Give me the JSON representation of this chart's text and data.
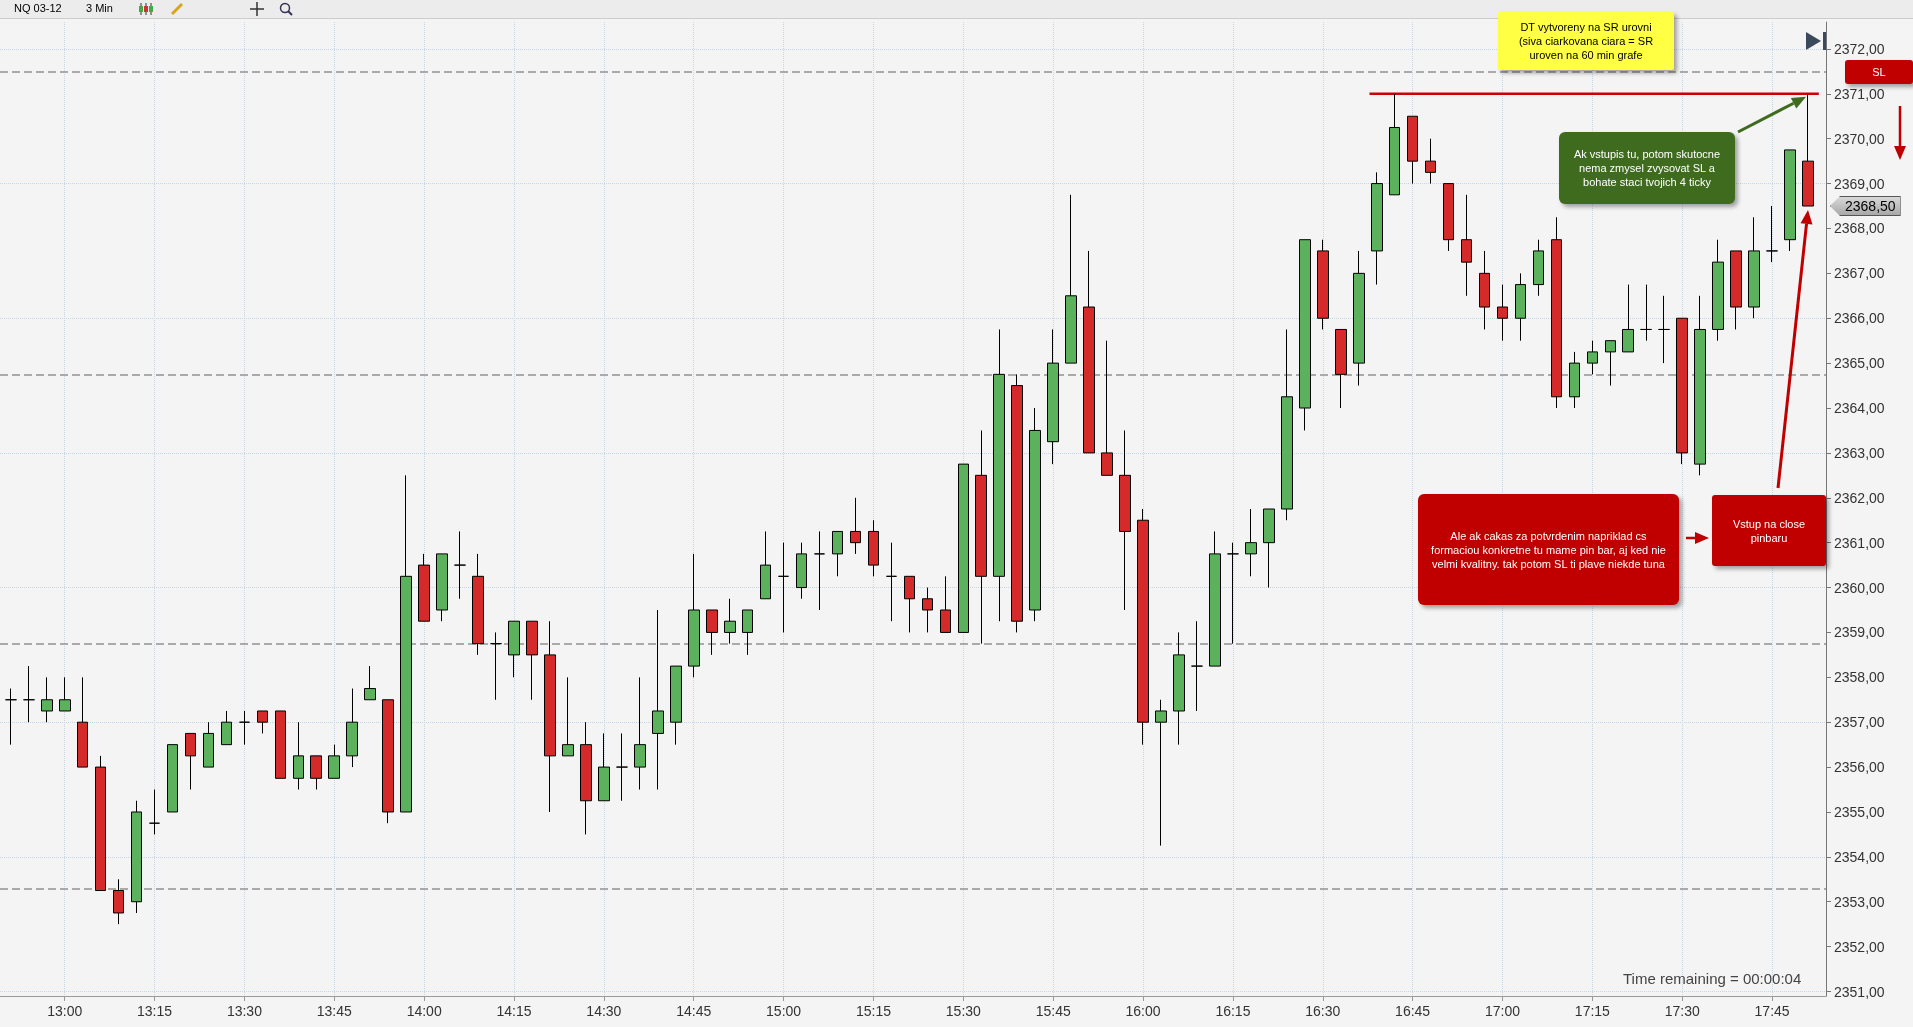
{
  "chart_data": {
    "type": "candlestick",
    "x": [
      12.85,
      12.9,
      12.95,
      13,
      13.05,
      13.1,
      13.15,
      13.2,
      13.25,
      13.3,
      13.35,
      13.4,
      13.45,
      13.5,
      13.55,
      13.6,
      13.65,
      13.7,
      13.75,
      13.8,
      13.85,
      13.9,
      13.95,
      14,
      14.05,
      14.1,
      14.15,
      14.2,
      14.25,
      14.3,
      14.35,
      14.4,
      14.45,
      14.5,
      14.55,
      14.6,
      14.65,
      14.7,
      14.75,
      14.8,
      14.85,
      14.9,
      14.95,
      15,
      15.05,
      15.1,
      15.15,
      15.2,
      15.25,
      15.3,
      15.35,
      15.4,
      15.45,
      15.5,
      15.55,
      15.6,
      15.65,
      15.7,
      15.75,
      15.8,
      15.85,
      15.9,
      15.95,
      16,
      16.05,
      16.1,
      16.15,
      16.2,
      16.25,
      16.3,
      16.35,
      16.4,
      16.45,
      16.5,
      16.55,
      16.6,
      16.65,
      16.7,
      16.75,
      16.8,
      16.85,
      16.9,
      16.95,
      17,
      17.05,
      17.1,
      17.15,
      17.2,
      17.25,
      17.3,
      17.35,
      17.4,
      17.45,
      17.5,
      17.55,
      17.6,
      17.65,
      17.7,
      17.75,
      17.8,
      17.85
    ],
    "ohlc": [
      [
        2357.5,
        2357.75,
        2356.5,
        2357.5
      ],
      [
        2357.5,
        2358.25,
        2357,
        2357.5
      ],
      [
        2357.25,
        2358,
        2357,
        2357.5
      ],
      [
        2357.25,
        2358,
        2357.25,
        2357.5
      ],
      [
        2357,
        2358,
        2356,
        2356
      ],
      [
        2356,
        2356.25,
        2353.25,
        2353.25
      ],
      [
        2353.25,
        2353.5,
        2352.5,
        2352.75
      ],
      [
        2353,
        2355.25,
        2352.75,
        2355
      ],
      [
        2354.75,
        2355.5,
        2354.5,
        2354.75
      ],
      [
        2355,
        2356.5,
        2355,
        2356.5
      ],
      [
        2356.75,
        2356.75,
        2355.5,
        2356.25
      ],
      [
        2356,
        2357,
        2356,
        2356.75
      ],
      [
        2356.5,
        2357.25,
        2356.5,
        2357
      ],
      [
        2357,
        2357.25,
        2356.5,
        2357
      ],
      [
        2357.25,
        2357.25,
        2356.75,
        2357
      ],
      [
        2357.25,
        2357.25,
        2355.75,
        2355.75
      ],
      [
        2355.75,
        2357,
        2355.5,
        2356.25
      ],
      [
        2356.25,
        2356.25,
        2355.5,
        2355.75
      ],
      [
        2355.75,
        2356.5,
        2355.75,
        2356.25
      ],
      [
        2356.25,
        2357.75,
        2356,
        2357
      ],
      [
        2357.5,
        2358.25,
        2357.5,
        2357.75
      ],
      [
        2357.5,
        2357.5,
        2354.75,
        2355
      ],
      [
        2355,
        2362.5,
        2355,
        2360.25
      ],
      [
        2360.5,
        2360.75,
        2359.25,
        2359.25
      ],
      [
        2359.5,
        2360.75,
        2359.25,
        2360.75
      ],
      [
        2360.5,
        2361.25,
        2359.75,
        2360.5
      ],
      [
        2360.25,
        2360.75,
        2358.5,
        2358.75
      ],
      [
        2358.75,
        2359,
        2357.5,
        2358.75
      ],
      [
        2358.5,
        2359.25,
        2358,
        2359.25
      ],
      [
        2359.25,
        2359.25,
        2357.5,
        2358.5
      ],
      [
        2358.5,
        2359.25,
        2355,
        2356.25
      ],
      [
        2356.25,
        2358,
        2356.25,
        2356.5
      ],
      [
        2356.5,
        2357,
        2354.5,
        2355.25
      ],
      [
        2355.25,
        2356.75,
        2355.25,
        2356
      ],
      [
        2356,
        2356.75,
        2355.25,
        2356
      ],
      [
        2356,
        2358,
        2355.5,
        2356.5
      ],
      [
        2356.75,
        2359.5,
        2355.5,
        2357.25
      ],
      [
        2357,
        2358.25,
        2356.5,
        2358.25
      ],
      [
        2358.25,
        2360.75,
        2358,
        2359.5
      ],
      [
        2359.5,
        2359.5,
        2358.5,
        2359
      ],
      [
        2359,
        2359.75,
        2358.75,
        2359.25
      ],
      [
        2359,
        2359.5,
        2358.5,
        2359.5
      ],
      [
        2359.75,
        2361.25,
        2359.75,
        2360.5
      ],
      [
        2360.25,
        2361,
        2359,
        2360.25
      ],
      [
        2360,
        2361,
        2359.75,
        2360.75
      ],
      [
        2360.75,
        2361.25,
        2359.5,
        2360.75
      ],
      [
        2360.75,
        2361.25,
        2360.25,
        2361.25
      ],
      [
        2361.25,
        2362,
        2360.75,
        2361
      ],
      [
        2361.25,
        2361.5,
        2360.25,
        2360.5
      ],
      [
        2360.25,
        2361,
        2359.25,
        2360.25
      ],
      [
        2360.25,
        2360.25,
        2359,
        2359.75
      ],
      [
        2359.75,
        2360,
        2359,
        2359.5
      ],
      [
        2359.5,
        2360.25,
        2359,
        2359
      ],
      [
        2359,
        2362.75,
        2359,
        2362.75
      ],
      [
        2362.5,
        2363.5,
        2358.75,
        2360.25
      ],
      [
        2360.25,
        2365.75,
        2359.25,
        2364.75
      ],
      [
        2364.5,
        2364.75,
        2359,
        2359.25
      ],
      [
        2359.5,
        2364,
        2359.25,
        2363.5
      ],
      [
        2363.25,
        2365.75,
        2362.75,
        2365
      ],
      [
        2365,
        2368.75,
        2365,
        2366.5
      ],
      [
        2366.25,
        2367.5,
        2363,
        2363
      ],
      [
        2363,
        2365.5,
        2362.5,
        2362.5
      ],
      [
        2362.5,
        2363.5,
        2359.5,
        2361.25
      ],
      [
        2361.5,
        2361.75,
        2356.5,
        2357
      ],
      [
        2357,
        2357.5,
        2354.25,
        2357.25
      ],
      [
        2357.25,
        2359,
        2356.5,
        2358.5
      ],
      [
        2358.25,
        2359.25,
        2357.25,
        2358.25
      ],
      [
        2358.25,
        2361.25,
        2358.25,
        2360.75
      ],
      [
        2360.75,
        2361,
        2358.75,
        2360.75
      ],
      [
        2360.75,
        2361.75,
        2360.25,
        2361
      ],
      [
        2361,
        2361.75,
        2360,
        2361.75
      ],
      [
        2361.75,
        2365.75,
        2361.5,
        2364.25
      ],
      [
        2364,
        2367.75,
        2363.5,
        2367.75
      ],
      [
        2367.5,
        2367.75,
        2365.75,
        2366
      ],
      [
        2365.75,
        2365.75,
        2364,
        2364.75
      ],
      [
        2365,
        2367.5,
        2364.5,
        2367
      ],
      [
        2367.5,
        2369.25,
        2366.75,
        2369
      ],
      [
        2368.75,
        2371,
        2368.75,
        2370.25
      ],
      [
        2370.5,
        2370.5,
        2369,
        2369.5
      ],
      [
        2369.5,
        2370,
        2369,
        2369.25
      ],
      [
        2369,
        2369,
        2367.5,
        2367.75
      ],
      [
        2367.75,
        2368.75,
        2366.5,
        2367.25
      ],
      [
        2367,
        2367.5,
        2365.75,
        2366.25
      ],
      [
        2366.25,
        2366.75,
        2365.5,
        2366
      ],
      [
        2366,
        2367,
        2365.5,
        2366.75
      ],
      [
        2366.75,
        2367.75,
        2366.5,
        2367.5
      ],
      [
        2367.75,
        2368.25,
        2364,
        2364.25
      ],
      [
        2364.25,
        2365.25,
        2364,
        2365
      ],
      [
        2365,
        2365.5,
        2364.75,
        2365.25
      ],
      [
        2365.25,
        2365.5,
        2364.5,
        2365.5
      ],
      [
        2365.25,
        2366.75,
        2365.25,
        2365.75
      ],
      [
        2365.75,
        2366.75,
        2365.5,
        2365.75
      ],
      [
        2365.75,
        2366.5,
        2365,
        2365.75
      ],
      [
        2366,
        2366,
        2362.75,
        2363
      ],
      [
        2362.75,
        2366.5,
        2362.5,
        2365.75
      ],
      [
        2365.75,
        2367.75,
        2365.5,
        2367.25
      ],
      [
        2367.5,
        2367.5,
        2365.75,
        2366.25
      ],
      [
        2366.25,
        2368.25,
        2366,
        2367.5
      ],
      [
        2367.5,
        2368.5,
        2367.25,
        2367.5
      ],
      [
        2367.75,
        2369.75,
        2367.5,
        2369.75
      ],
      [
        2369.5,
        2371,
        2368.5,
        2368.5
      ]
    ],
    "colors": [
      "#000000",
      "#000000",
      "#5cb25c",
      "#5cb25c",
      "#d42a2a",
      "#d42a2a",
      "#d42a2a",
      "#5cb25c",
      "#000000",
      "#5cb25c",
      "#d42a2a",
      "#5cb25c",
      "#5cb25c",
      "#000000",
      "#d42a2a",
      "#d42a2a",
      "#5cb25c",
      "#d42a2a",
      "#5cb25c",
      "#5cb25c",
      "#5cb25c",
      "#d42a2a",
      "#5cb25c",
      "#d42a2a",
      "#5cb25c",
      "#000000",
      "#d42a2a",
      "#000000",
      "#5cb25c",
      "#d42a2a",
      "#d42a2a",
      "#5cb25c",
      "#d42a2a",
      "#5cb25c",
      "#000000",
      "#5cb25c",
      "#5cb25c",
      "#5cb25c",
      "#5cb25c",
      "#d42a2a",
      "#5cb25c",
      "#5cb25c",
      "#5cb25c",
      "#000000",
      "#5cb25c",
      "#000000",
      "#5cb25c",
      "#d42a2a",
      "#d42a2a",
      "#000000",
      "#d42a2a",
      "#d42a2a",
      "#d42a2a",
      "#5cb25c",
      "#d42a2a",
      "#5cb25c",
      "#d42a2a",
      "#5cb25c",
      "#5cb25c",
      "#5cb25c",
      "#d42a2a",
      "#d42a2a",
      "#d42a2a",
      "#d42a2a",
      "#5cb25c",
      "#5cb25c",
      "#000000",
      "#5cb25c",
      "#000000",
      "#5cb25c",
      "#5cb25c",
      "#5cb25c",
      "#5cb25c",
      "#d42a2a",
      "#d42a2a",
      "#5cb25c",
      "#5cb25c",
      "#5cb25c",
      "#d42a2a",
      "#d42a2a",
      "#d42a2a",
      "#d42a2a",
      "#d42a2a",
      "#d42a2a",
      "#5cb25c",
      "#5cb25c",
      "#d42a2a",
      "#5cb25c",
      "#5cb25c",
      "#5cb25c",
      "#5cb25c",
      "#000000",
      "#000000",
      "#d42a2a",
      "#5cb25c",
      "#5cb25c",
      "#d42a2a",
      "#5cb25c",
      "#000000",
      "#5cb25c",
      "#d42a2a"
    ],
    "series": [
      {
        "type": "line",
        "color": "#cc0000",
        "x": [
          16.63,
          17.88
        ],
        "values": [
          2371,
          2371
        ]
      }
    ],
    "xlim": [
      12.82,
      17.9
    ],
    "ylim": [
      2350.9,
      2372.6
    ],
    "xticks": [
      {
        "value": 13,
        "label": "13:00"
      },
      {
        "value": 13.25,
        "label": "13:15"
      },
      {
        "value": 13.5,
        "label": "13:30"
      },
      {
        "value": 13.75,
        "label": "13:45"
      },
      {
        "value": 14,
        "label": "14:00"
      },
      {
        "value": 14.25,
        "label": "14:15"
      },
      {
        "value": 14.5,
        "label": "14:30"
      },
      {
        "value": 14.75,
        "label": "14:45"
      },
      {
        "value": 15,
        "label": "15:00"
      },
      {
        "value": 15.25,
        "label": "15:15"
      },
      {
        "value": 15.5,
        "label": "15:30"
      },
      {
        "value": 15.75,
        "label": "15:45"
      },
      {
        "value": 16,
        "label": "16:00"
      },
      {
        "value": 16.25,
        "label": "16:15"
      },
      {
        "value": 16.5,
        "label": "16:30"
      },
      {
        "value": 16.75,
        "label": "16:45"
      },
      {
        "value": 17,
        "label": "17:00"
      },
      {
        "value": 17.25,
        "label": "17:15"
      },
      {
        "value": 17.5,
        "label": "17:30"
      },
      {
        "value": 17.75,
        "label": "17:45"
      }
    ],
    "yticks": [
      {
        "value": 2351,
        "label": "2351,00"
      },
      {
        "value": 2352,
        "label": "2352,00"
      },
      {
        "value": 2353,
        "label": "2353,00"
      },
      {
        "value": 2354,
        "label": "2354,00"
      },
      {
        "value": 2355,
        "label": "2355,00"
      },
      {
        "value": 2356,
        "label": "2356,00"
      },
      {
        "value": 2357,
        "label": "2357,00"
      },
      {
        "value": 2358,
        "label": "2358,00"
      },
      {
        "value": 2359,
        "label": "2359,00"
      },
      {
        "value": 2360,
        "label": "2360,00"
      },
      {
        "value": 2361,
        "label": "2361,00"
      },
      {
        "value": 2362,
        "label": "2362,00"
      },
      {
        "value": 2363,
        "label": "2363,00"
      },
      {
        "value": 2364,
        "label": "2364,00"
      },
      {
        "value": 2365,
        "label": "2365,00"
      },
      {
        "value": 2366,
        "label": "2366,00"
      },
      {
        "value": 2367,
        "label": "2367,00"
      },
      {
        "value": 2368,
        "label": "2368,00"
      },
      {
        "value": 2369,
        "label": "2369,00"
      },
      {
        "value": 2370,
        "label": "2370,00"
      },
      {
        "value": 2371,
        "label": "2371,00"
      },
      {
        "value": 2372,
        "label": "2372,00"
      }
    ],
    "grid": true,
    "ref_lines": [
      {
        "axis": "y",
        "value": 2371.5,
        "color": "#aaaaaa",
        "line_style": "dashed"
      },
      {
        "axis": "y",
        "value": 2364.75,
        "color": "#aaaaaa",
        "line_style": "dashed"
      },
      {
        "axis": "y",
        "value": 2358.75,
        "color": "#aaaaaa",
        "line_style": "dashed"
      },
      {
        "axis": "y",
        "value": 2353.3,
        "color": "#aaaaaa",
        "line_style": "dashed"
      }
    ],
    "annotations": [
      "NQ 03-12",
      "3 Min",
      "DT vytvoreny na SR urovni (siva ciarkovana ciara = SR uroven na 60 min grafe",
      "Ak vstupis tu, potom skutocne nema zmysel zvysovat SL a bohate staci tvojich 4 ticky",
      "Ale ak cakas za potvrdenim napriklad cs formaciou konkretne tu mame pin bar, aj ked nie velmi kvalitny. tak potom SL ti plave niekde tuna",
      "Vstup na close pinbaru",
      "SL",
      "2368,50",
      "Time remaining = 00:00:04"
    ]
  }
}
